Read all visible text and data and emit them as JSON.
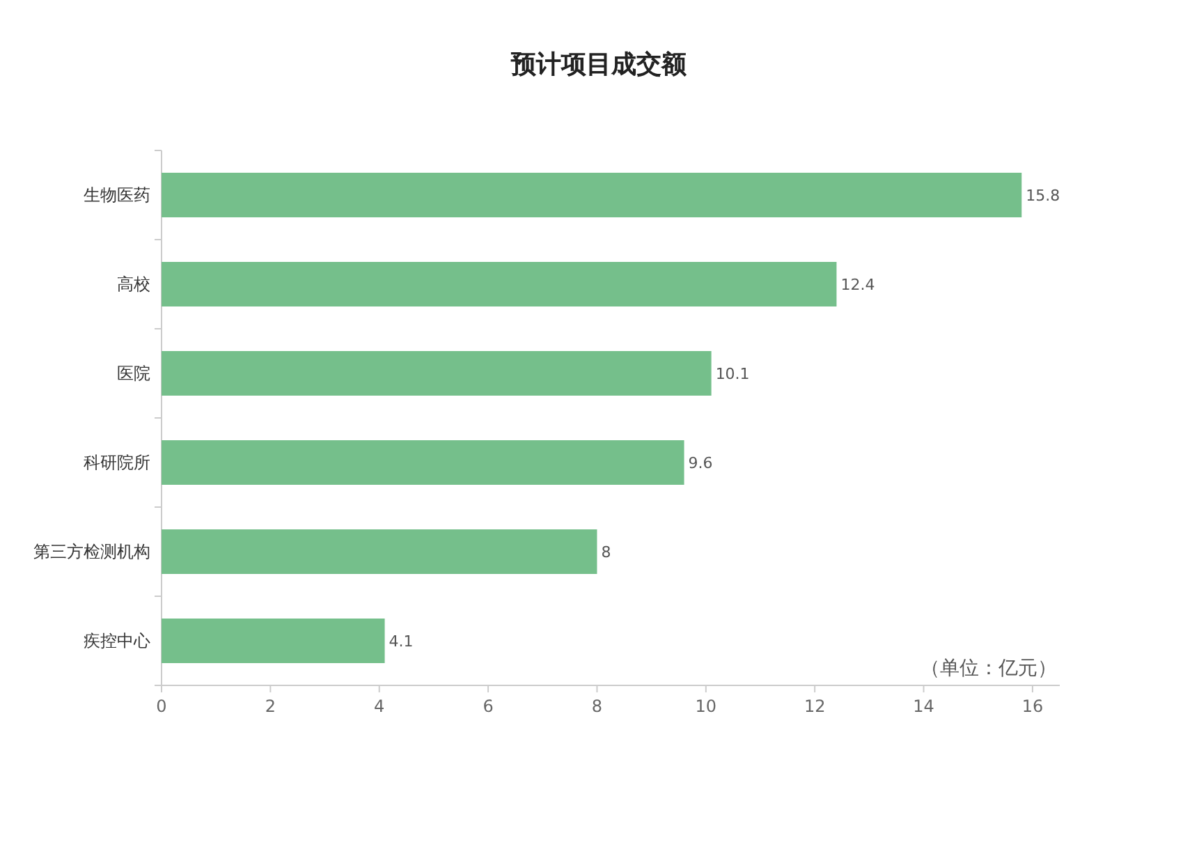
{
  "chart_data": {
    "type": "bar",
    "orientation": "horizontal",
    "title": "预计项目成交额",
    "categories": [
      "生物医药",
      "高校",
      "医院",
      "科研院所",
      "第三方检测机构",
      "疾控中心"
    ],
    "values": [
      15.8,
      12.4,
      10.1,
      9.6,
      8,
      4.1
    ],
    "color": "#75bf8b",
    "xlim": [
      0,
      16.5
    ],
    "xticks": [
      0,
      2,
      4,
      6,
      8,
      10,
      12,
      14,
      16
    ],
    "data_labels": true,
    "grid": false,
    "annotations": [
      "（单位：亿元）"
    ]
  }
}
